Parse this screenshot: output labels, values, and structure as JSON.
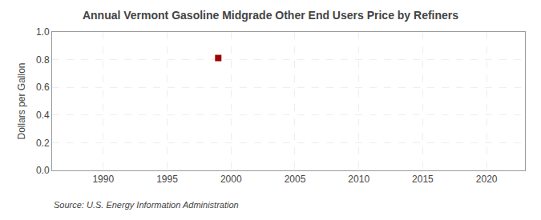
{
  "chart_data": {
    "type": "scatter",
    "title": "Annual Vermont Gasoline Midgrade Other End Users Price by Refiners",
    "y_label": "Dollars per Gallon",
    "annotations": [
      "Source: U.S. Energy Information Administration"
    ],
    "x": [
      1999
    ],
    "values": [
      0.812
    ],
    "color": "#a00000",
    "marker": "square",
    "xlim": [
      1986,
      2023
    ],
    "xticks": [
      1990,
      1995,
      2000,
      2005,
      2010,
      2015,
      2020
    ],
    "ylim": [
      0.0,
      1.0
    ],
    "yticks": [
      {
        "value": 0.0,
        "label": "0.0"
      },
      0.2,
      0.4,
      0.6,
      0.8,
      {
        "value": 1.0,
        "label": "1.0"
      }
    ],
    "grid": true
  }
}
